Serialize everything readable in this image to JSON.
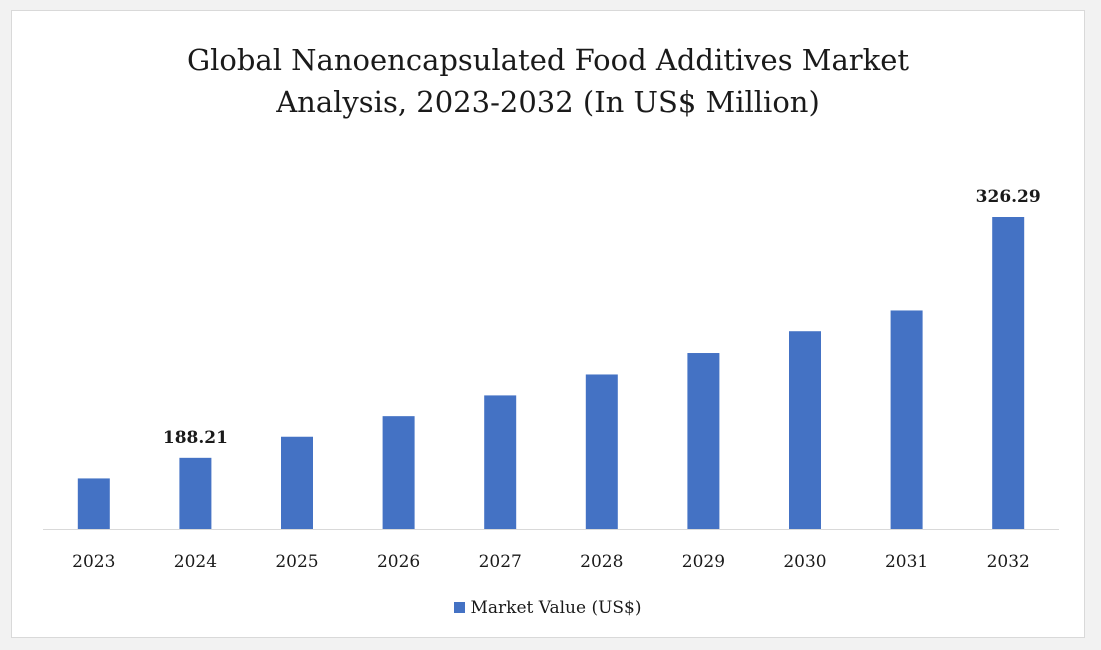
{
  "chart_data": {
    "type": "bar",
    "title": "Global Nanoencapsulated Food Additives Market\nAnalysis, 2023-2032 (In US$ Million)",
    "categories": [
      "2023",
      "2024",
      "2025",
      "2026",
      "2027",
      "2028",
      "2029",
      "2030",
      "2031",
      "2032"
    ],
    "series": [
      {
        "name": "Market Value (US$)",
        "values": [
          176.4,
          188.21,
          200.3,
          212.1,
          224.0,
          236.0,
          248.3,
          260.8,
          272.7,
          326.29
        ]
      }
    ],
    "data_labels": [
      {
        "category": "2024",
        "text": "188.21"
      },
      {
        "category": "2032",
        "text": "326.29"
      }
    ],
    "ylim": [
      147.4,
      326.29
    ],
    "grid": false,
    "legend_position": "bottom",
    "colors": {
      "bar": "#4472c4",
      "axis": "#d9d9d9",
      "text": "#1a1a1a"
    }
  }
}
